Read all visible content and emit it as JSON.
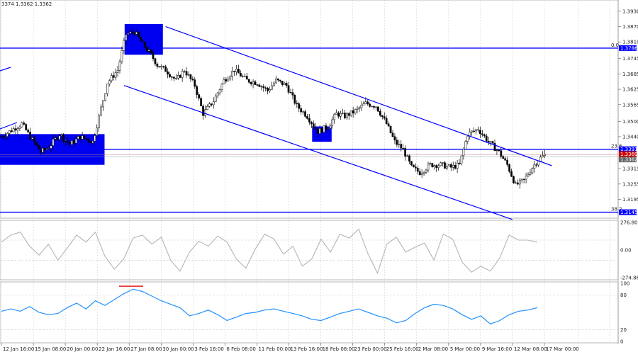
{
  "header": {
    "ohlc_text": "3374 1.3362 1.3362"
  },
  "chart_data": [
    {
      "type": "candlestick",
      "panel": "price",
      "ylim": [
        1.313,
        1.396
      ],
      "y_ticks": [
        "1.3930",
        "1.3870",
        "1.3810",
        "1.3745",
        "1.3685",
        "1.3625",
        "1.3565",
        "1.3500",
        "1.3440",
        "1.3315",
        "1.3255",
        "1.3195"
      ],
      "x_ticks": [
        "12 Jan 16:00",
        "15 Jan 08:00",
        "20 Jan 00:00",
        "22 Jan 16:00",
        "27 Jan 08:00",
        "30 Jan 00:00",
        "3 Feb 16:00",
        "6 Feb 08:00",
        "11 Feb 00:00",
        "13 Feb 16:00",
        "18 Feb 08:00",
        "23 Feb 00:00",
        "25 Feb 16:00",
        "2 Mar 08:00",
        "5 Mar 00:00",
        "9 Mar 16:00",
        "12 Mar 08:00",
        "17 Mar 00:00"
      ],
      "price_path": [
        [
          0,
          1.344
        ],
        [
          6,
          1.347
        ],
        [
          10,
          1.349
        ],
        [
          14,
          1.344
        ],
        [
          19,
          1.338
        ],
        [
          23,
          1.34
        ],
        [
          28,
          1.345
        ],
        [
          33,
          1.341
        ],
        [
          38,
          1.344
        ],
        [
          44,
          1.342
        ],
        [
          51,
          1.365
        ],
        [
          56,
          1.37
        ],
        [
          60,
          1.384
        ],
        [
          64,
          1.385
        ],
        [
          68,
          1.38
        ],
        [
          72,
          1.376
        ],
        [
          75,
          1.372
        ],
        [
          79,
          1.37
        ],
        [
          84,
          1.366
        ],
        [
          88,
          1.37
        ],
        [
          93,
          1.364
        ],
        [
          97,
          1.353
        ],
        [
          102,
          1.358
        ],
        [
          107,
          1.366
        ],
        [
          112,
          1.37
        ],
        [
          118,
          1.366
        ],
        [
          123,
          1.365
        ],
        [
          128,
          1.362
        ],
        [
          132,
          1.366
        ],
        [
          137,
          1.364
        ],
        [
          142,
          1.356
        ],
        [
          147,
          1.352
        ],
        [
          152,
          1.346
        ],
        [
          157,
          1.348
        ],
        [
          161,
          1.353
        ],
        [
          165,
          1.352
        ],
        [
          170,
          1.354
        ],
        [
          175,
          1.357
        ],
        [
          180,
          1.356
        ],
        [
          185,
          1.349
        ],
        [
          189,
          1.342
        ],
        [
          193,
          1.339
        ],
        [
          197,
          1.332
        ],
        [
          201,
          1.33
        ],
        [
          206,
          1.333
        ],
        [
          211,
          1.333
        ],
        [
          216,
          1.332
        ],
        [
          220,
          1.333
        ],
        [
          224,
          1.345
        ],
        [
          229,
          1.347
        ],
        [
          234,
          1.342
        ],
        [
          239,
          1.338
        ],
        [
          243,
          1.333
        ],
        [
          247,
          1.325
        ],
        [
          251,
          1.327
        ],
        [
          255,
          1.332
        ],
        [
          258,
          1.335
        ],
        [
          261,
          1.337
        ]
      ],
      "levels": [
        {
          "label": "1.3786",
          "price": 1.3786,
          "fib": "0.0"
        },
        {
          "label": "1.3391",
          "price": 1.3391,
          "fib": "23.6"
        },
        {
          "label": "1.3145",
          "price": 1.3145,
          "fib": "38.2"
        }
      ],
      "current_prices": [
        "1.3369",
        "1.3362"
      ],
      "channel_upper": [
        [
          1.387,
          79
        ],
        [
          1.3335,
          261
        ]
      ],
      "channel_lower": [
        [
          1.364,
          59
        ],
        [
          1.3125,
          242
        ]
      ],
      "zones": [
        {
          "x": [
            0,
            49
          ],
          "price": [
            1.333,
            1.345
          ]
        },
        {
          "x": [
            60,
            77
          ],
          "price": [
            1.376,
            1.388
          ]
        },
        {
          "x": [
            150,
            158
          ],
          "price": [
            1.342,
            1.348
          ]
        }
      ]
    },
    {
      "type": "line",
      "panel": "cci",
      "ylim": [
        -274.8654,
        276.8074
      ],
      "y_ticks": [
        "276.8074",
        "0.00",
        "-274.865"
      ],
      "values": [
        80,
        150,
        180,
        40,
        -50,
        60,
        -100,
        20,
        150,
        80,
        180,
        -60,
        -190,
        -90,
        120,
        150,
        60,
        130,
        -100,
        -210,
        -20,
        90,
        40,
        140,
        80,
        -90,
        -180,
        10,
        160,
        110,
        -40,
        40,
        -160,
        -90,
        110,
        -20,
        160,
        120,
        210,
        -40,
        -230,
        60,
        130,
        -20,
        30,
        70,
        -100,
        160,
        110,
        -120,
        -220,
        -160,
        -210,
        -80,
        150,
        100,
        100,
        80
      ],
      "color": "#b4b4b4"
    },
    {
      "type": "line",
      "panel": "stochastic",
      "ylim": [
        0,
        100
      ],
      "y_ticks": [
        "100",
        "80",
        "20",
        "0"
      ],
      "values": [
        52,
        56,
        52,
        60,
        50,
        46,
        48,
        58,
        66,
        56,
        70,
        62,
        72,
        82,
        90,
        86,
        78,
        70,
        64,
        58,
        44,
        48,
        54,
        46,
        36,
        42,
        48,
        50,
        54,
        56,
        52,
        48,
        44,
        38,
        36,
        42,
        48,
        52,
        56,
        50,
        44,
        40,
        32,
        36,
        48,
        58,
        64,
        62,
        56,
        46,
        38,
        44,
        30,
        36,
        46,
        52,
        54,
        58
      ],
      "color": "#1e90ff",
      "overbought_segment_value": 95,
      "overbought_color": "#e00000"
    }
  ],
  "colors": {
    "line_blue": "#0000ff",
    "zone_blue": "#0000f0",
    "grid": "#d0d0d0",
    "candles": "#000000"
  }
}
